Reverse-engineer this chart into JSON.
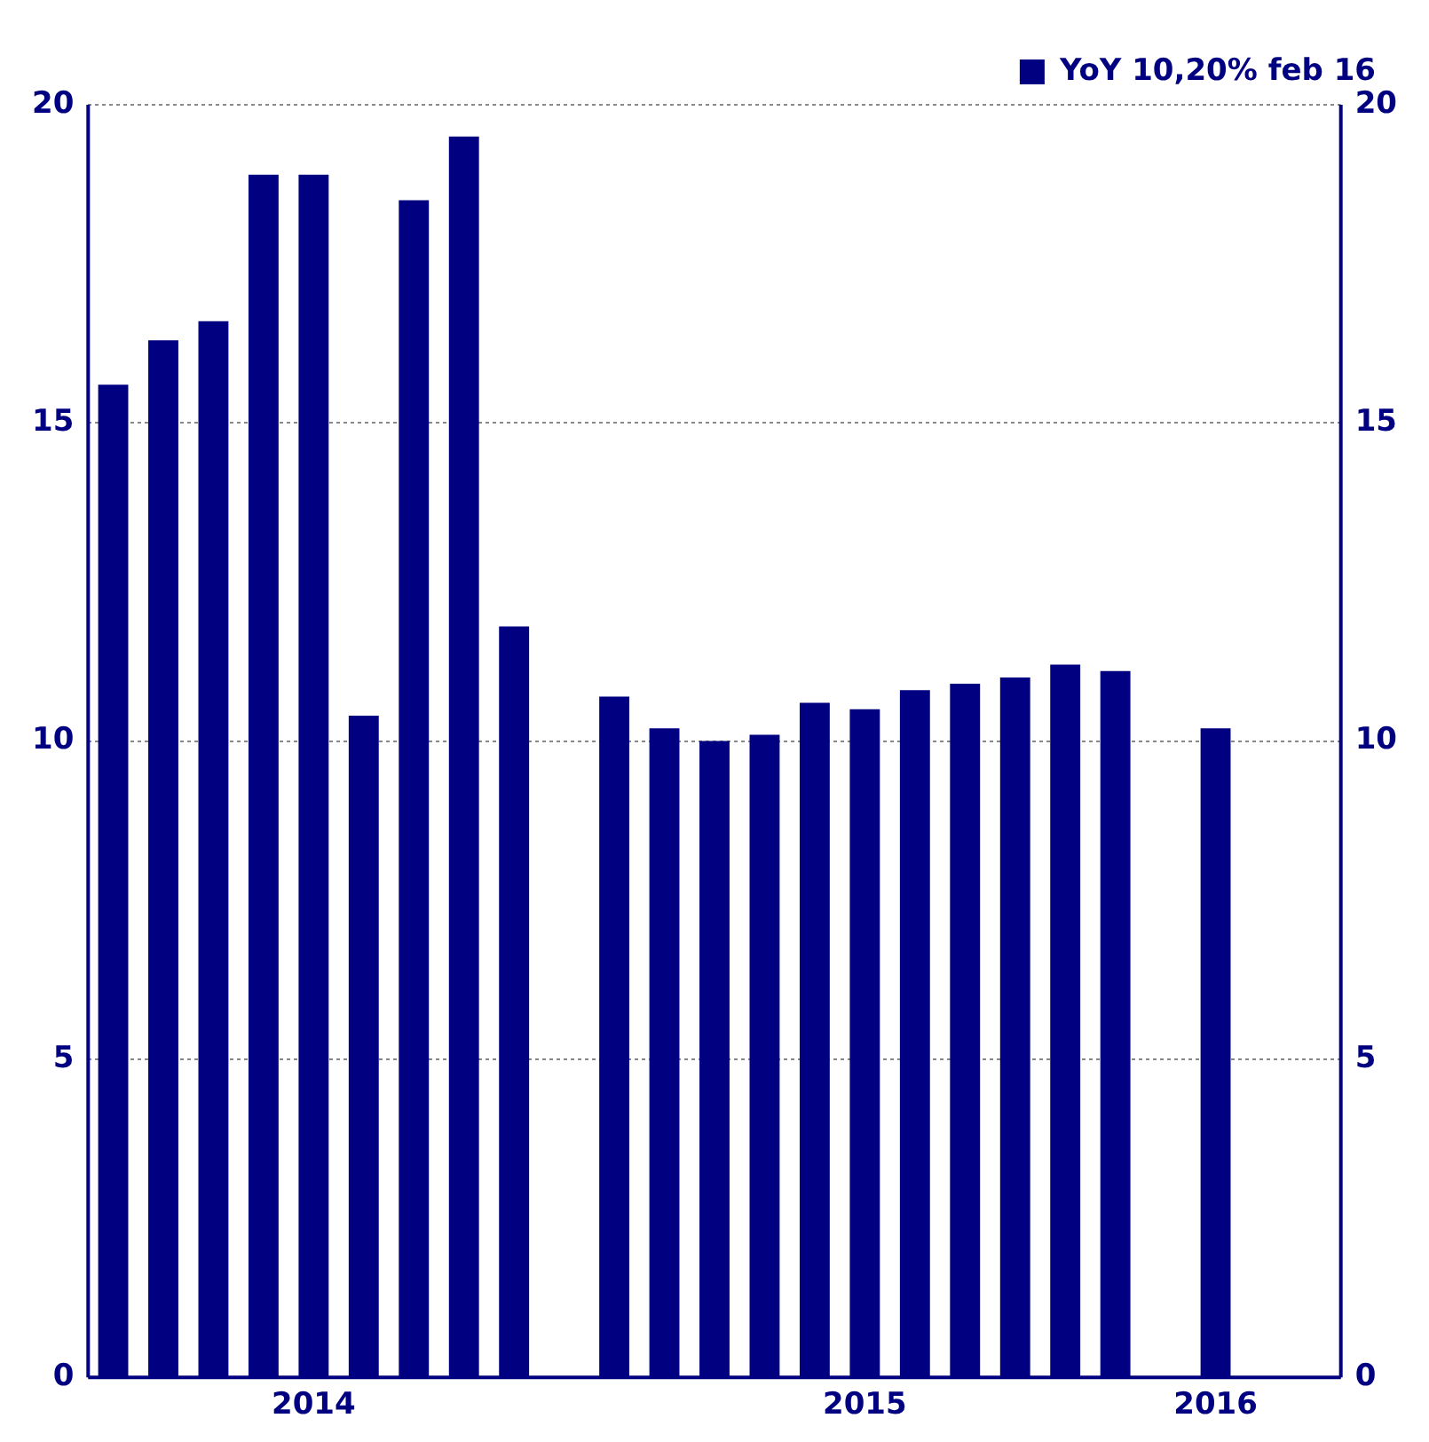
{
  "chart_data": {
    "type": "bar",
    "categories": [
      null,
      null,
      null,
      null,
      "2014",
      null,
      null,
      null,
      null,
      null,
      null,
      null,
      null,
      null,
      null,
      "2015",
      null,
      null,
      null,
      null,
      null,
      null,
      "2016",
      null,
      null
    ],
    "series": [
      {
        "name": "YoY 10,20% feb 16",
        "color": "#000080",
        "values": [
          15.6,
          16.3,
          16.6,
          18.9,
          18.9,
          10.4,
          18.5,
          19.5,
          11.8,
          null,
          10.7,
          10.2,
          10.0,
          10.1,
          10.6,
          10.5,
          10.8,
          10.9,
          11.0,
          11.2,
          11.1,
          null,
          10.2,
          null,
          null
        ]
      }
    ],
    "ylim": [
      0,
      20
    ],
    "yticks": [
      0,
      5,
      10,
      15,
      20
    ],
    "y2lim": [
      0,
      20
    ],
    "y2ticks": [
      0,
      5,
      10,
      15,
      20
    ],
    "grid": "y",
    "legend": "top right"
  }
}
